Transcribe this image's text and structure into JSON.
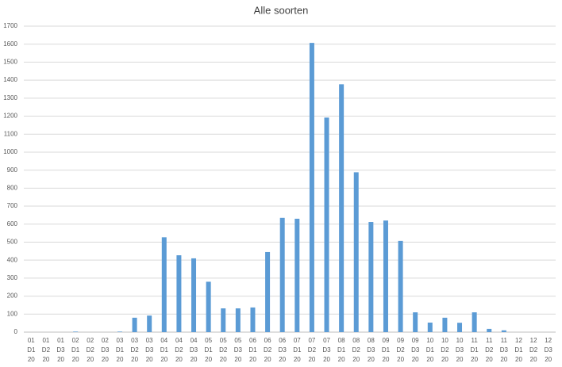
{
  "chart_data": {
    "type": "bar",
    "title": "Alle soorten",
    "categories": [
      [
        "01",
        "D1",
        "20"
      ],
      [
        "01",
        "D2",
        "20"
      ],
      [
        "01",
        "D3",
        "20"
      ],
      [
        "02",
        "D1",
        "20"
      ],
      [
        "02",
        "D2",
        "20"
      ],
      [
        "02",
        "D3",
        "20"
      ],
      [
        "03",
        "D1",
        "20"
      ],
      [
        "03",
        "D2",
        "20"
      ],
      [
        "03",
        "D3",
        "20"
      ],
      [
        "04",
        "D1",
        "20"
      ],
      [
        "04",
        "D2",
        "20"
      ],
      [
        "04",
        "D3",
        "20"
      ],
      [
        "05",
        "D1",
        "20"
      ],
      [
        "05",
        "D2",
        "20"
      ],
      [
        "05",
        "D3",
        "20"
      ],
      [
        "06",
        "D1",
        "20"
      ],
      [
        "06",
        "D2",
        "20"
      ],
      [
        "06",
        "D3",
        "20"
      ],
      [
        "07",
        "D1",
        "20"
      ],
      [
        "07",
        "D2",
        "20"
      ],
      [
        "07",
        "D3",
        "20"
      ],
      [
        "08",
        "D1",
        "20"
      ],
      [
        "08",
        "D2",
        "20"
      ],
      [
        "08",
        "D3",
        "20"
      ],
      [
        "09",
        "D1",
        "20"
      ],
      [
        "09",
        "D2",
        "20"
      ],
      [
        "09",
        "D3",
        "20"
      ],
      [
        "10",
        "D1",
        "20"
      ],
      [
        "10",
        "D2",
        "20"
      ],
      [
        "10",
        "D3",
        "20"
      ],
      [
        "11",
        "D1",
        "20"
      ],
      [
        "11",
        "D2",
        "20"
      ],
      [
        "11",
        "D3",
        "20"
      ],
      [
        "12",
        "D1",
        "20"
      ],
      [
        "12",
        "D2",
        "20"
      ],
      [
        "12",
        "D3",
        "20"
      ]
    ],
    "values": [
      0,
      0,
      0,
      3,
      0,
      0,
      3,
      80,
      92,
      527,
      427,
      410,
      280,
      132,
      132,
      137,
      445,
      635,
      630,
      1607,
      1192,
      1377,
      888,
      612,
      620,
      507,
      110,
      53,
      80,
      52,
      110,
      18,
      10,
      0,
      0,
      0
    ],
    "color": "#5b9bd5",
    "ylim": [
      0,
      1700
    ],
    "yticks": [
      0,
      100,
      200,
      300,
      400,
      500,
      600,
      700,
      800,
      900,
      1000,
      1100,
      1200,
      1300,
      1400,
      1500,
      1600,
      1700
    ],
    "grid": true
  }
}
